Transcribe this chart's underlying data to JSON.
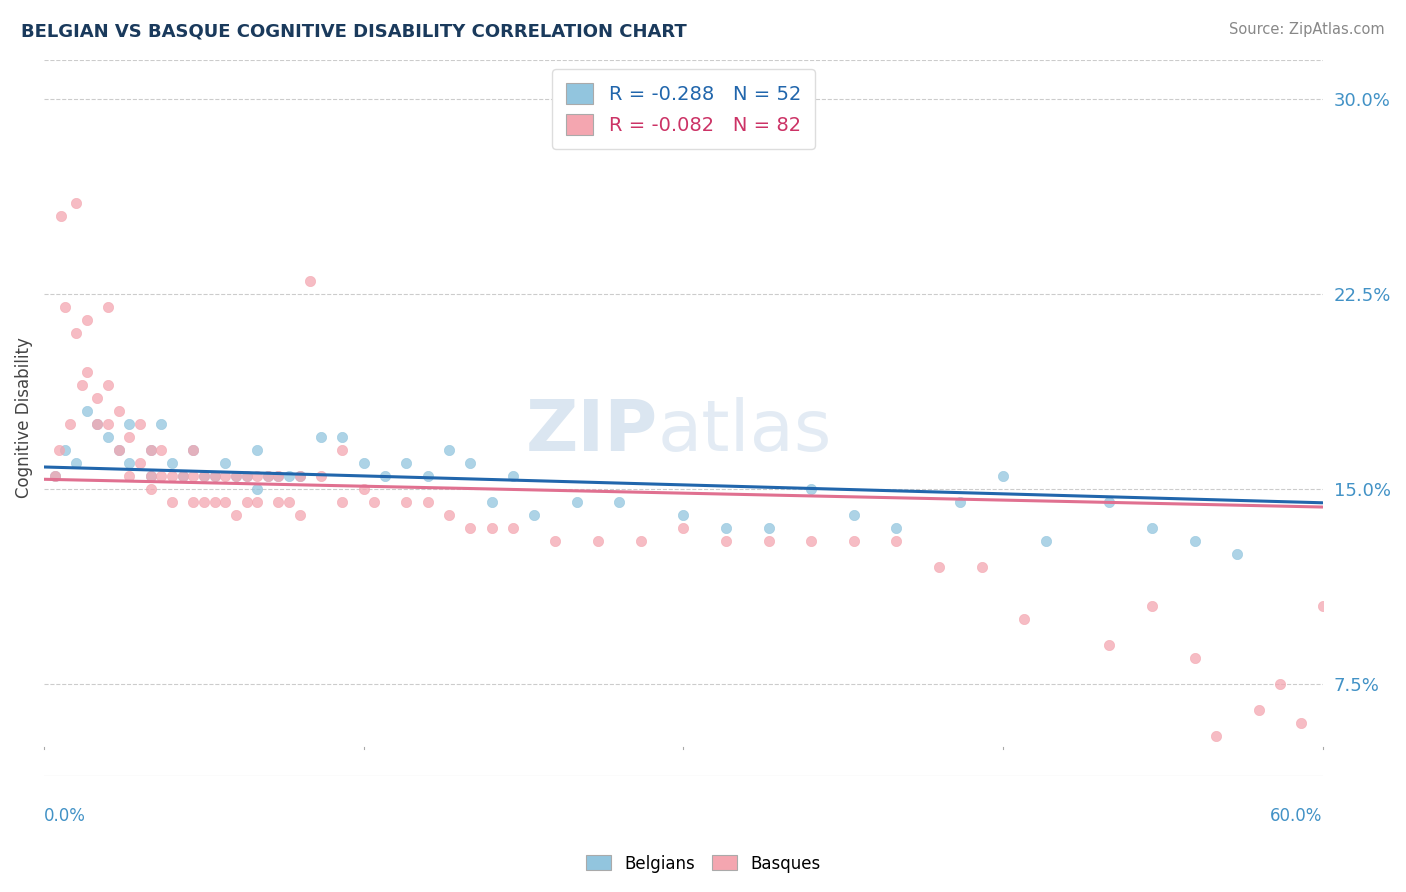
{
  "title": "BELGIAN VS BASQUE COGNITIVE DISABILITY CORRELATION CHART",
  "source": "Source: ZipAtlas.com",
  "ylabel": "Cognitive Disability",
  "yticks": [
    "7.5%",
    "15.0%",
    "22.5%",
    "30.0%"
  ],
  "ytick_vals": [
    0.075,
    0.15,
    0.225,
    0.3
  ],
  "xlim": [
    0.0,
    0.6
  ],
  "ylim": [
    0.04,
    0.315
  ],
  "belgian_color": "#92c5de",
  "basque_color": "#f4a6b0",
  "belgian_line_color": "#2166ac",
  "basque_line_color": "#e07090",
  "r_belgian": -0.288,
  "n_belgian": 52,
  "r_basque": -0.082,
  "n_basque": 82,
  "belgian_points_x": [
    0.005,
    0.01,
    0.015,
    0.02,
    0.025,
    0.03,
    0.035,
    0.04,
    0.04,
    0.05,
    0.05,
    0.055,
    0.06,
    0.065,
    0.07,
    0.075,
    0.08,
    0.085,
    0.09,
    0.095,
    0.1,
    0.1,
    0.105,
    0.11,
    0.115,
    0.12,
    0.13,
    0.14,
    0.15,
    0.16,
    0.17,
    0.18,
    0.19,
    0.2,
    0.21,
    0.22,
    0.23,
    0.25,
    0.27,
    0.3,
    0.32,
    0.34,
    0.36,
    0.38,
    0.4,
    0.43,
    0.45,
    0.47,
    0.5,
    0.52,
    0.54,
    0.56
  ],
  "belgian_points_y": [
    0.155,
    0.165,
    0.16,
    0.18,
    0.175,
    0.17,
    0.165,
    0.16,
    0.175,
    0.155,
    0.165,
    0.175,
    0.16,
    0.155,
    0.165,
    0.155,
    0.155,
    0.16,
    0.155,
    0.155,
    0.15,
    0.165,
    0.155,
    0.155,
    0.155,
    0.155,
    0.17,
    0.17,
    0.16,
    0.155,
    0.16,
    0.155,
    0.165,
    0.16,
    0.145,
    0.155,
    0.14,
    0.145,
    0.145,
    0.14,
    0.135,
    0.135,
    0.15,
    0.14,
    0.135,
    0.145,
    0.155,
    0.13,
    0.145,
    0.135,
    0.13,
    0.125
  ],
  "basque_points_x": [
    0.005,
    0.007,
    0.008,
    0.01,
    0.012,
    0.015,
    0.015,
    0.018,
    0.02,
    0.02,
    0.025,
    0.025,
    0.03,
    0.03,
    0.03,
    0.035,
    0.035,
    0.04,
    0.04,
    0.045,
    0.045,
    0.05,
    0.05,
    0.05,
    0.055,
    0.055,
    0.06,
    0.06,
    0.065,
    0.07,
    0.07,
    0.07,
    0.075,
    0.075,
    0.08,
    0.08,
    0.085,
    0.085,
    0.09,
    0.09,
    0.095,
    0.095,
    0.1,
    0.1,
    0.105,
    0.11,
    0.11,
    0.115,
    0.12,
    0.12,
    0.125,
    0.13,
    0.14,
    0.14,
    0.15,
    0.155,
    0.17,
    0.18,
    0.19,
    0.2,
    0.21,
    0.22,
    0.24,
    0.26,
    0.28,
    0.3,
    0.32,
    0.34,
    0.36,
    0.38,
    0.4,
    0.42,
    0.44,
    0.46,
    0.5,
    0.52,
    0.54,
    0.55,
    0.57,
    0.58,
    0.59,
    0.6
  ],
  "basque_points_y": [
    0.155,
    0.165,
    0.255,
    0.22,
    0.175,
    0.21,
    0.26,
    0.19,
    0.195,
    0.215,
    0.175,
    0.185,
    0.175,
    0.19,
    0.22,
    0.165,
    0.18,
    0.155,
    0.17,
    0.16,
    0.175,
    0.15,
    0.155,
    0.165,
    0.155,
    0.165,
    0.145,
    0.155,
    0.155,
    0.145,
    0.155,
    0.165,
    0.145,
    0.155,
    0.145,
    0.155,
    0.145,
    0.155,
    0.14,
    0.155,
    0.145,
    0.155,
    0.145,
    0.155,
    0.155,
    0.145,
    0.155,
    0.145,
    0.14,
    0.155,
    0.23,
    0.155,
    0.145,
    0.165,
    0.15,
    0.145,
    0.145,
    0.145,
    0.14,
    0.135,
    0.135,
    0.135,
    0.13,
    0.13,
    0.13,
    0.135,
    0.13,
    0.13,
    0.13,
    0.13,
    0.13,
    0.12,
    0.12,
    0.1,
    0.09,
    0.105,
    0.085,
    0.055,
    0.065,
    0.075,
    0.06,
    0.105
  ]
}
